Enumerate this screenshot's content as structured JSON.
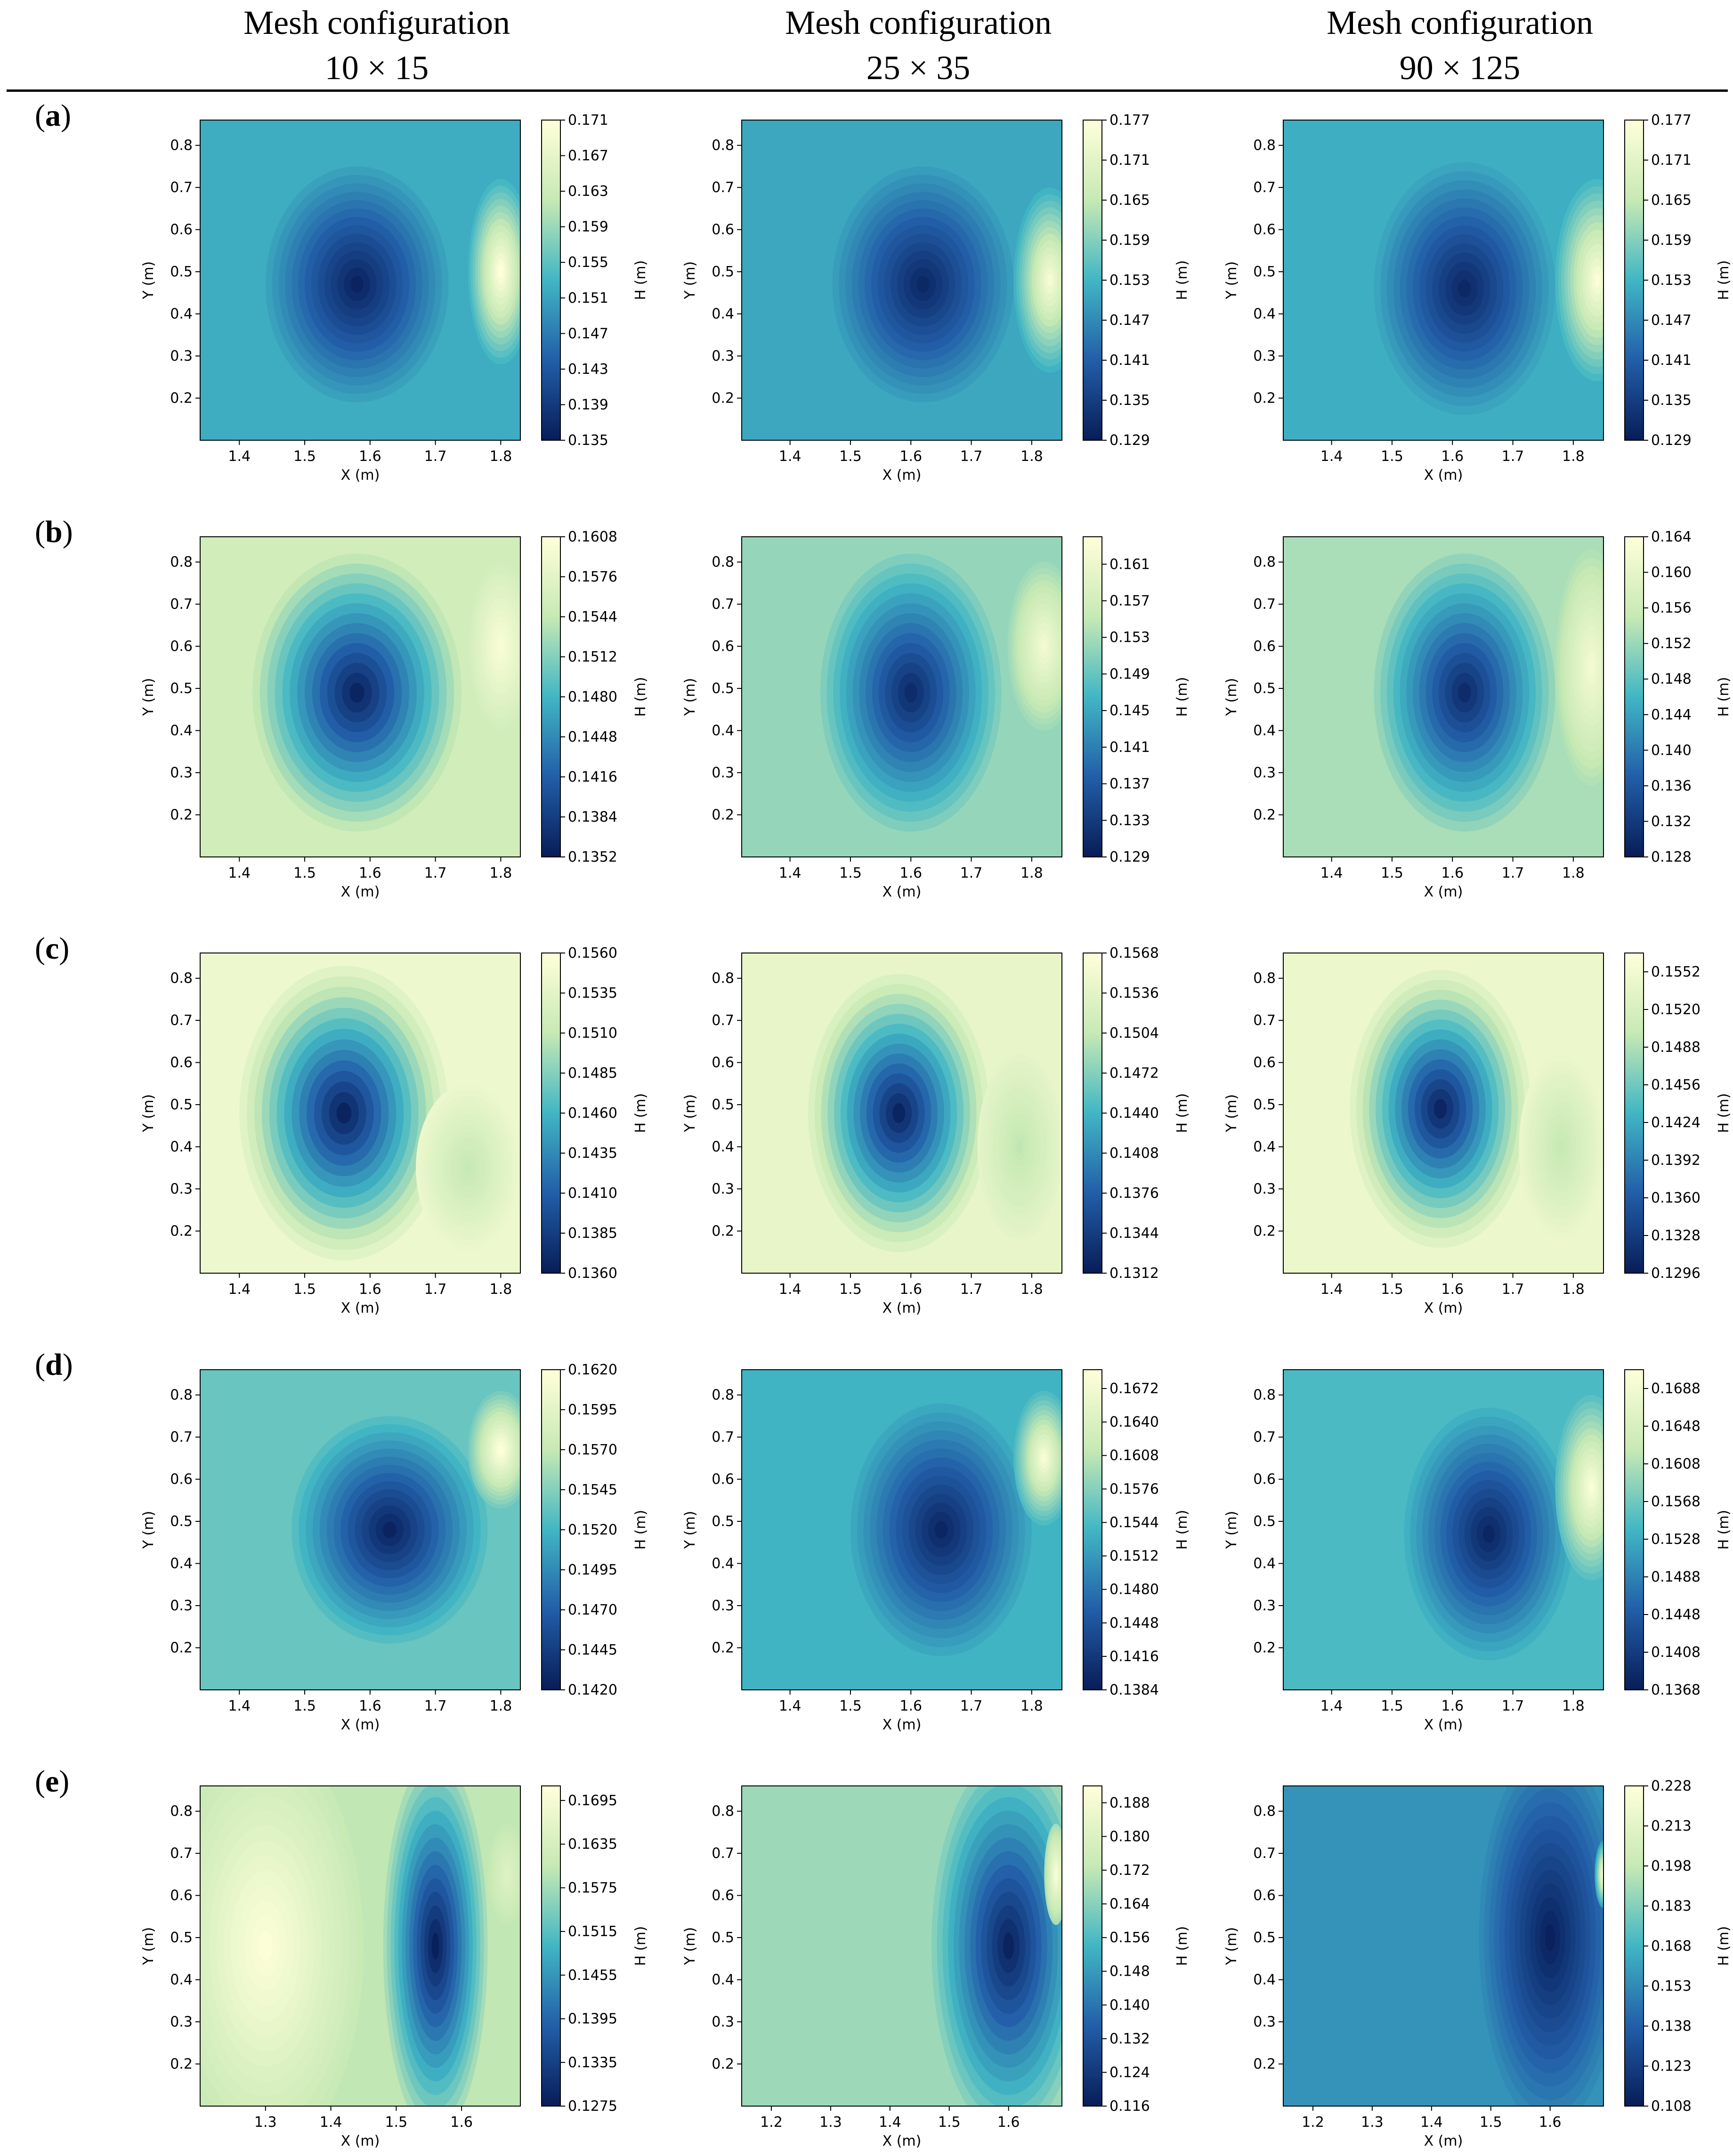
{
  "header": {
    "columns": [
      {
        "title": "Mesh configuration",
        "subtitle": "10 × 15"
      },
      {
        "title": "Mesh configuration",
        "subtitle": "25 × 35"
      },
      {
        "title": "Mesh configuration",
        "subtitle": "90 × 125"
      }
    ]
  },
  "rows": [
    {
      "label": "a"
    },
    {
      "label": "b"
    },
    {
      "label": "c"
    },
    {
      "label": "d"
    },
    {
      "label": "e"
    }
  ],
  "colors": {
    "low": "#081d58",
    "mid_low": "#225ea8",
    "mid": "#41b6c4",
    "mid_high": "#c7e9b4",
    "high": "#ffffd9"
  },
  "chart_data": [
    {
      "id": "a1",
      "type": "heatmap",
      "xlabel": "X (m)",
      "ylabel": "Y (m)",
      "cbar_label": "H (m)",
      "xlim": [
        1.34,
        1.83
      ],
      "ylim": [
        0.1,
        0.86
      ],
      "xticks": [
        "1.4",
        "1.5",
        "1.6",
        "1.7",
        "1.8"
      ],
      "yticks": [
        "0.2",
        "0.3",
        "0.4",
        "0.5",
        "0.6",
        "0.7",
        "0.8"
      ],
      "cbar_ticks": [
        "0.135",
        "0.139",
        "0.143",
        "0.147",
        "0.151",
        "0.155",
        "0.159",
        "0.163",
        "0.167",
        "0.171"
      ],
      "vmin": 0.135,
      "vmax": 0.171,
      "background": 0.152,
      "features": [
        {
          "x": 1.58,
          "y": 0.47,
          "rx": 0.14,
          "ry": 0.28,
          "value": 0.136
        },
        {
          "x": 1.8,
          "y": 0.5,
          "rx": 0.05,
          "ry": 0.22,
          "value": 0.171
        }
      ]
    },
    {
      "id": "a2",
      "type": "heatmap",
      "xlabel": "X (m)",
      "ylabel": "Y (m)",
      "cbar_label": "H (m)",
      "xlim": [
        1.32,
        1.85
      ],
      "ylim": [
        0.1,
        0.86
      ],
      "xticks": [
        "1.4",
        "1.5",
        "1.6",
        "1.7",
        "1.8"
      ],
      "yticks": [
        "0.2",
        "0.3",
        "0.4",
        "0.5",
        "0.6",
        "0.7",
        "0.8"
      ],
      "cbar_ticks": [
        "0.129",
        "0.135",
        "0.141",
        "0.147",
        "0.153",
        "0.159",
        "0.165",
        "0.171",
        "0.177"
      ],
      "vmin": 0.129,
      "vmax": 0.177,
      "background": 0.151,
      "features": [
        {
          "x": 1.62,
          "y": 0.47,
          "rx": 0.15,
          "ry": 0.28,
          "value": 0.131
        },
        {
          "x": 1.83,
          "y": 0.48,
          "rx": 0.06,
          "ry": 0.22,
          "value": 0.175
        }
      ]
    },
    {
      "id": "a3",
      "type": "heatmap",
      "xlabel": "X (m)",
      "ylabel": "Y (m)",
      "cbar_label": "H (m)",
      "xlim": [
        1.32,
        1.85
      ],
      "ylim": [
        0.1,
        0.86
      ],
      "xticks": [
        "1.4",
        "1.5",
        "1.6",
        "1.7",
        "1.8"
      ],
      "yticks": [
        "0.2",
        "0.3",
        "0.4",
        "0.5",
        "0.6",
        "0.7",
        "0.8"
      ],
      "cbar_ticks": [
        "0.129",
        "0.135",
        "0.141",
        "0.147",
        "0.153",
        "0.159",
        "0.165",
        "0.171",
        "0.177"
      ],
      "vmin": 0.129,
      "vmax": 0.177,
      "background": 0.152,
      "features": [
        {
          "x": 1.62,
          "y": 0.46,
          "rx": 0.15,
          "ry": 0.3,
          "value": 0.131
        },
        {
          "x": 1.84,
          "y": 0.48,
          "rx": 0.07,
          "ry": 0.24,
          "value": 0.176
        }
      ]
    },
    {
      "id": "b1",
      "type": "heatmap",
      "xlabel": "X (m)",
      "ylabel": "Y (m)",
      "cbar_label": "H (m)",
      "xlim": [
        1.34,
        1.83
      ],
      "ylim": [
        0.1,
        0.86
      ],
      "xticks": [
        "1.4",
        "1.5",
        "1.6",
        "1.7",
        "1.8"
      ],
      "yticks": [
        "0.2",
        "0.3",
        "0.4",
        "0.5",
        "0.6",
        "0.7",
        "0.8"
      ],
      "cbar_ticks": [
        "0.1352",
        "0.1384",
        "0.1416",
        "0.1448",
        "0.1480",
        "0.1512",
        "0.1544",
        "0.1576",
        "0.1608"
      ],
      "vmin": 0.1352,
      "vmax": 0.1608,
      "background": 0.1555,
      "features": [
        {
          "x": 1.58,
          "y": 0.49,
          "rx": 0.16,
          "ry": 0.33,
          "value": 0.136
        },
        {
          "x": 1.8,
          "y": 0.6,
          "rx": 0.05,
          "ry": 0.2,
          "value": 0.16
        }
      ]
    },
    {
      "id": "b2",
      "type": "heatmap",
      "xlabel": "X (m)",
      "ylabel": "Y (m)",
      "cbar_label": "H (m)",
      "xlim": [
        1.32,
        1.85
      ],
      "ylim": [
        0.1,
        0.86
      ],
      "xticks": [
        "1.4",
        "1.5",
        "1.6",
        "1.7",
        "1.8"
      ],
      "yticks": [
        "0.2",
        "0.3",
        "0.4",
        "0.5",
        "0.6",
        "0.7",
        "0.8"
      ],
      "cbar_ticks": [
        "0.129",
        "0.133",
        "0.137",
        "0.141",
        "0.145",
        "0.149",
        "0.153",
        "0.157",
        "0.161"
      ],
      "vmin": 0.129,
      "vmax": 0.164,
      "background": 0.152,
      "features": [
        {
          "x": 1.6,
          "y": 0.49,
          "rx": 0.15,
          "ry": 0.33,
          "value": 0.131
        },
        {
          "x": 1.82,
          "y": 0.6,
          "rx": 0.06,
          "ry": 0.2,
          "value": 0.162
        }
      ]
    },
    {
      "id": "b3",
      "type": "heatmap",
      "xlabel": "X (m)",
      "ylabel": "Y (m)",
      "cbar_label": "H (m)",
      "xlim": [
        1.32,
        1.85
      ],
      "ylim": [
        0.1,
        0.86
      ],
      "xticks": [
        "1.4",
        "1.5",
        "1.6",
        "1.7",
        "1.8"
      ],
      "yticks": [
        "0.2",
        "0.3",
        "0.4",
        "0.5",
        "0.6",
        "0.7",
        "0.8"
      ],
      "cbar_ticks": [
        "0.128",
        "0.132",
        "0.136",
        "0.140",
        "0.144",
        "0.148",
        "0.152",
        "0.156",
        "0.160",
        "0.164"
      ],
      "vmin": 0.128,
      "vmax": 0.164,
      "background": 0.153,
      "features": [
        {
          "x": 1.62,
          "y": 0.49,
          "rx": 0.15,
          "ry": 0.33,
          "value": 0.13
        },
        {
          "x": 1.83,
          "y": 0.55,
          "rx": 0.06,
          "ry": 0.28,
          "value": 0.162
        }
      ]
    },
    {
      "id": "c1",
      "type": "heatmap",
      "xlabel": "X (m)",
      "ylabel": "Y (m)",
      "cbar_label": "H (m)",
      "xlim": [
        1.34,
        1.83
      ],
      "ylim": [
        0.1,
        0.86
      ],
      "xticks": [
        "1.4",
        "1.5",
        "1.6",
        "1.7",
        "1.8"
      ],
      "yticks": [
        "0.2",
        "0.3",
        "0.4",
        "0.5",
        "0.6",
        "0.7",
        "0.8"
      ],
      "cbar_ticks": [
        "0.1360",
        "0.1385",
        "0.1410",
        "0.1435",
        "0.1460",
        "0.1485",
        "0.1510",
        "0.1535",
        "0.1560"
      ],
      "vmin": 0.136,
      "vmax": 0.156,
      "background": 0.1545,
      "features": [
        {
          "x": 1.56,
          "y": 0.48,
          "rx": 0.16,
          "ry": 0.35,
          "value": 0.1365
        },
        {
          "x": 1.75,
          "y": 0.35,
          "rx": 0.08,
          "ry": 0.2,
          "value": 0.151
        }
      ]
    },
    {
      "id": "c2",
      "type": "heatmap",
      "xlabel": "X (m)",
      "ylabel": "Y (m)",
      "cbar_label": "H (m)",
      "xlim": [
        1.32,
        1.85
      ],
      "ylim": [
        0.1,
        0.86
      ],
      "xticks": [
        "1.4",
        "1.5",
        "1.6",
        "1.7",
        "1.8"
      ],
      "yticks": [
        "0.2",
        "0.3",
        "0.4",
        "0.5",
        "0.6",
        "0.7",
        "0.8"
      ],
      "cbar_ticks": [
        "0.1312",
        "0.1344",
        "0.1376",
        "0.1408",
        "0.1440",
        "0.1472",
        "0.1504",
        "0.1536",
        "0.1568"
      ],
      "vmin": 0.1312,
      "vmax": 0.1568,
      "background": 0.154,
      "features": [
        {
          "x": 1.58,
          "y": 0.48,
          "rx": 0.15,
          "ry": 0.33,
          "value": 0.132
        },
        {
          "x": 1.78,
          "y": 0.4,
          "rx": 0.07,
          "ry": 0.22,
          "value": 0.15
        }
      ]
    },
    {
      "id": "c3",
      "type": "heatmap",
      "xlabel": "X (m)",
      "ylabel": "Y (m)",
      "cbar_label": "H (m)",
      "xlim": [
        1.32,
        1.85
      ],
      "ylim": [
        0.1,
        0.86
      ],
      "xticks": [
        "1.4",
        "1.5",
        "1.6",
        "1.7",
        "1.8"
      ],
      "yticks": [
        "0.2",
        "0.3",
        "0.4",
        "0.5",
        "0.6",
        "0.7",
        "0.8"
      ],
      "cbar_ticks": [
        "0.1296",
        "0.1328",
        "0.1360",
        "0.1392",
        "0.1424",
        "0.1456",
        "0.1488",
        "0.1520",
        "0.1552"
      ],
      "vmin": 0.1296,
      "vmax": 0.1568,
      "background": 0.1545,
      "features": [
        {
          "x": 1.58,
          "y": 0.49,
          "rx": 0.15,
          "ry": 0.33,
          "value": 0.1305
        },
        {
          "x": 1.78,
          "y": 0.4,
          "rx": 0.07,
          "ry": 0.22,
          "value": 0.15
        }
      ]
    },
    {
      "id": "d1",
      "type": "heatmap",
      "xlabel": "X (m)",
      "ylabel": "Y (m)",
      "cbar_label": "H (m)",
      "xlim": [
        1.34,
        1.83
      ],
      "ylim": [
        0.1,
        0.86
      ],
      "xticks": [
        "1.4",
        "1.5",
        "1.6",
        "1.7",
        "1.8"
      ],
      "yticks": [
        "0.2",
        "0.3",
        "0.4",
        "0.5",
        "0.6",
        "0.7",
        "0.8"
      ],
      "cbar_ticks": [
        "0.1420",
        "0.1445",
        "0.1470",
        "0.1495",
        "0.1520",
        "0.1545",
        "0.1570",
        "0.1595",
        "0.1620"
      ],
      "vmin": 0.142,
      "vmax": 0.162,
      "background": 0.1535,
      "features": [
        {
          "x": 1.63,
          "y": 0.48,
          "rx": 0.15,
          "ry": 0.27,
          "value": 0.1425
        },
        {
          "x": 1.8,
          "y": 0.67,
          "rx": 0.05,
          "ry": 0.14,
          "value": 0.162
        }
      ]
    },
    {
      "id": "d2",
      "type": "heatmap",
      "xlabel": "X (m)",
      "ylabel": "Y (m)",
      "cbar_label": "H (m)",
      "xlim": [
        1.32,
        1.85
      ],
      "ylim": [
        0.1,
        0.86
      ],
      "xticks": [
        "1.4",
        "1.5",
        "1.6",
        "1.7",
        "1.8"
      ],
      "yticks": [
        "0.2",
        "0.3",
        "0.4",
        "0.5",
        "0.6",
        "0.7",
        "0.8"
      ],
      "cbar_ticks": [
        "0.1384",
        "0.1416",
        "0.1448",
        "0.1480",
        "0.1512",
        "0.1544",
        "0.1576",
        "0.1608",
        "0.1640",
        "0.1672"
      ],
      "vmin": 0.1384,
      "vmax": 0.169,
      "background": 0.1535,
      "features": [
        {
          "x": 1.65,
          "y": 0.48,
          "rx": 0.15,
          "ry": 0.3,
          "value": 0.1395
        },
        {
          "x": 1.82,
          "y": 0.65,
          "rx": 0.05,
          "ry": 0.16,
          "value": 0.168
        }
      ]
    },
    {
      "id": "d3",
      "type": "heatmap",
      "xlabel": "X (m)",
      "ylabel": "Y (m)",
      "cbar_label": "H (m)",
      "xlim": [
        1.32,
        1.85
      ],
      "ylim": [
        0.1,
        0.86
      ],
      "xticks": [
        "1.4",
        "1.5",
        "1.6",
        "1.7",
        "1.8"
      ],
      "yticks": [
        "0.2",
        "0.3",
        "0.4",
        "0.5",
        "0.6",
        "0.7",
        "0.8"
      ],
      "cbar_ticks": [
        "0.1368",
        "0.1408",
        "0.1448",
        "0.1488",
        "0.1528",
        "0.1568",
        "0.1608",
        "0.1648",
        "0.1688"
      ],
      "vmin": 0.1368,
      "vmax": 0.1708,
      "background": 0.1545,
      "features": [
        {
          "x": 1.66,
          "y": 0.47,
          "rx": 0.14,
          "ry": 0.3,
          "value": 0.138
        },
        {
          "x": 1.83,
          "y": 0.58,
          "rx": 0.06,
          "ry": 0.22,
          "value": 0.17
        }
      ]
    },
    {
      "id": "e1",
      "type": "heatmap",
      "xlabel": "X (m)",
      "ylabel": "Y (m)",
      "cbar_label": "H (m)",
      "xlim": [
        1.2,
        1.69
      ],
      "ylim": [
        0.1,
        0.86
      ],
      "xticks": [
        "1.3",
        "1.4",
        "1.5",
        "1.6"
      ],
      "yticks": [
        "0.2",
        "0.3",
        "0.4",
        "0.5",
        "0.6",
        "0.7",
        "0.8"
      ],
      "cbar_ticks": [
        "0.1275",
        "0.1335",
        "0.1395",
        "0.1455",
        "0.1515",
        "0.1575",
        "0.1635",
        "0.1695"
      ],
      "vmin": 0.1275,
      "vmax": 0.1715,
      "background": 0.16,
      "features": [
        {
          "x": 1.3,
          "y": 0.48,
          "rx": 0.15,
          "ry": 0.5,
          "value": 0.171
        },
        {
          "x": 1.56,
          "y": 0.48,
          "rx": 0.08,
          "ry": 0.45,
          "value": 0.128
        },
        {
          "x": 1.67,
          "y": 0.65,
          "rx": 0.03,
          "ry": 0.12,
          "value": 0.165
        }
      ]
    },
    {
      "id": "e2",
      "type": "heatmap",
      "xlabel": "X (m)",
      "ylabel": "Y (m)",
      "cbar_label": "H (m)",
      "xlim": [
        1.15,
        1.69
      ],
      "ylim": [
        0.1,
        0.86
      ],
      "xticks": [
        "1.2",
        "1.3",
        "1.4",
        "1.5",
        "1.6"
      ],
      "yticks": [
        "0.2",
        "0.3",
        "0.4",
        "0.5",
        "0.6",
        "0.7",
        "0.8"
      ],
      "cbar_ticks": [
        "0.116",
        "0.124",
        "0.132",
        "0.140",
        "0.148",
        "0.156",
        "0.164",
        "0.172",
        "0.180",
        "0.188"
      ],
      "vmin": 0.116,
      "vmax": 0.192,
      "background": 0.167,
      "features": [
        {
          "x": 1.6,
          "y": 0.48,
          "rx": 0.13,
          "ry": 0.45,
          "value": 0.118
        },
        {
          "x": 1.68,
          "y": 0.65,
          "rx": 0.02,
          "ry": 0.12,
          "value": 0.19
        }
      ]
    },
    {
      "id": "e3",
      "type": "heatmap",
      "xlabel": "X (m)",
      "ylabel": "Y (m)",
      "cbar_label": "H (m)",
      "xlim": [
        1.15,
        1.69
      ],
      "ylim": [
        0.1,
        0.86
      ],
      "xticks": [
        "1.2",
        "1.3",
        "1.4",
        "1.5",
        "1.6"
      ],
      "yticks": [
        "0.2",
        "0.3",
        "0.4",
        "0.5",
        "0.6",
        "0.7",
        "0.8"
      ],
      "cbar_ticks": [
        "0.108",
        "0.123",
        "0.138",
        "0.153",
        "0.168",
        "0.183",
        "0.198",
        "0.213",
        "0.228"
      ],
      "vmin": 0.108,
      "vmax": 0.228,
      "background": 0.156,
      "features": [
        {
          "x": 1.6,
          "y": 0.5,
          "rx": 0.12,
          "ry": 0.45,
          "value": 0.11
        },
        {
          "x": 1.69,
          "y": 0.65,
          "rx": 0.015,
          "ry": 0.08,
          "value": 0.228
        }
      ]
    }
  ]
}
